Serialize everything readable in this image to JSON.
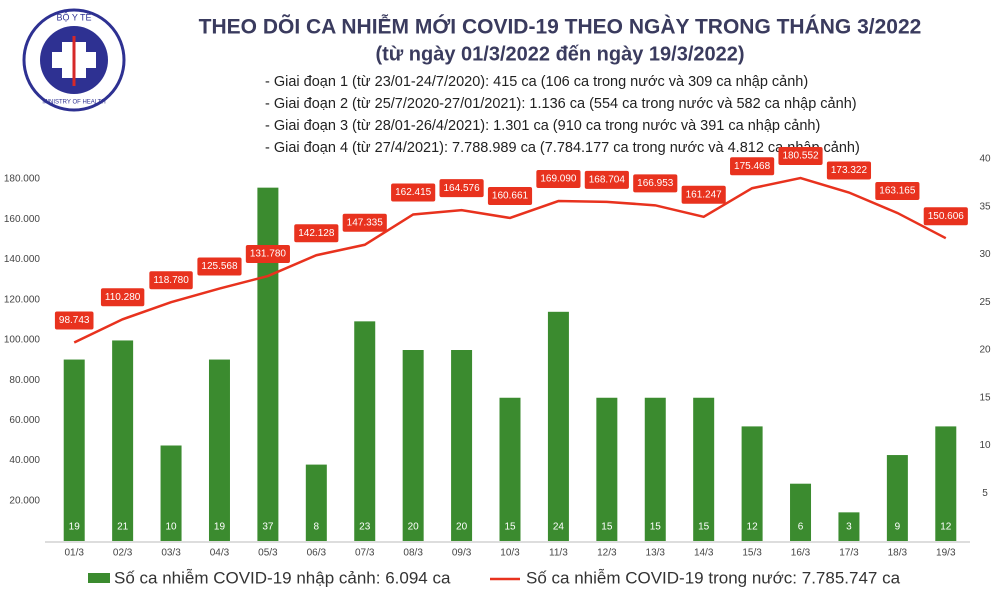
{
  "chart_data": {
    "type": "bar-line",
    "title": "THEO DÕI CA NHIỄM MỚI COVID-19 THEO NGÀY TRONG THÁNG 3/2022",
    "subtitle": "(từ ngày 01/3/2022 đến ngày 19/3/2022)",
    "annotations": [
      "- Giai đoạn 1 (từ 23/01-24/7/2020): 415 ca (106 ca trong nước và 309 ca nhập cảnh)",
      "- Giai đoạn 2 (từ 25/7/2020-27/01/2021): 1.136 ca (554 ca trong nước và 582 ca nhập cảnh)",
      "- Giai đoạn 3 (từ 28/01-26/4/2021): 1.301 ca (910 ca trong nước và 391 ca nhập cảnh)",
      "- Giai đoạn 4 (từ 27/4/2021): 7.788.989 ca (7.784.177 ca trong nước và 4.812 ca nhập cảnh)"
    ],
    "logo_texts": [
      "BỘ Y TẾ",
      "MINISTRY OF HEALTH"
    ],
    "categories": [
      "01/3",
      "02/3",
      "03/3",
      "04/3",
      "05/3",
      "06/3",
      "07/3",
      "08/3",
      "09/3",
      "10/3",
      "11/3",
      "12/3",
      "13/3",
      "14/3",
      "15/3",
      "16/3",
      "17/3",
      "18/3",
      "19/3"
    ],
    "series": [
      {
        "name": "Số ca nhiễm COVID-19 nhập cảnh: 6.094 ca",
        "color": "#3b8b2f",
        "axis": "y2",
        "values": [
          19,
          21,
          10,
          19,
          37,
          8,
          23,
          20,
          20,
          15,
          24,
          15,
          15,
          15,
          12,
          6,
          3,
          9,
          12
        ]
      },
      {
        "name": "Số ca nhiễm COVID-19 trong nước: 7.785.747 ca",
        "color": "#e8321e",
        "values": [
          98743,
          110280,
          118780,
          125568,
          131780,
          142128,
          147335,
          162415,
          164576,
          160661,
          169090,
          168704,
          166953,
          161247,
          175468,
          180552,
          173322,
          163165,
          150606
        ],
        "value_labels": [
          "98.743",
          "110.280",
          "118.780",
          "125.568",
          "131.780",
          "142.128",
          "147.335",
          "162.415",
          "164.576",
          "160.661",
          "169.090",
          "168.704",
          "166.953",
          "161.247",
          "175.468",
          "180.552",
          "173.322",
          "163.165",
          "150.606"
        ]
      }
    ],
    "ylim": [
      0,
      190000
    ],
    "yticks": [
      {
        "value": 20000,
        "label": "20.000"
      },
      {
        "value": 40000,
        "label": "40.000"
      },
      {
        "value": 60000,
        "label": "60.000"
      },
      {
        "value": 80000,
        "label": "80.000"
      },
      {
        "value": 100000,
        "label": "100.000"
      },
      {
        "value": 120000,
        "label": "120.000"
      },
      {
        "value": 140000,
        "label": "140.000"
      },
      {
        "value": 160000,
        "label": "160.000"
      },
      {
        "value": 180000,
        "label": "180.000"
      }
    ],
    "y2lim": [
      0,
      40
    ],
    "y2ticks": [
      5,
      10,
      15,
      20,
      25,
      30,
      35,
      40
    ]
  }
}
